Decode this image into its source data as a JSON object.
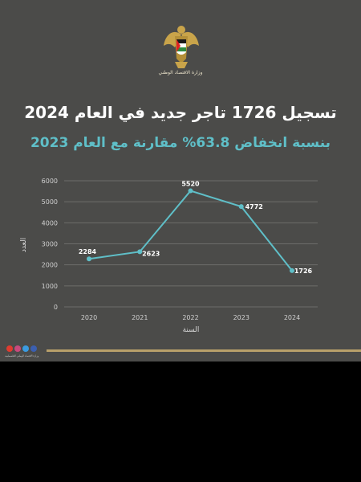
{
  "header": {
    "ministry": "وزارة الاقتصاد الوطني",
    "title": "تسجيل 1726 تاجر جديد في العام 2024",
    "subtitle": "بنسبة انخفاض 63.8% مقارنة مع العام 2023"
  },
  "colors": {
    "background": "#4b4b49",
    "line": "#5fbfc8",
    "accent_gold": "#b8a06a"
  },
  "social": {
    "icons": [
      "youtube-icon",
      "instagram-icon",
      "twitter-icon",
      "facebook-icon"
    ],
    "caption": "وزارة الاقتصاد الوطني الفلسطينية"
  },
  "chart_data": {
    "type": "line",
    "x": [
      2020,
      2021,
      2022,
      2023,
      2024
    ],
    "categories": [
      "2020",
      "2021",
      "2022",
      "2023",
      "2024"
    ],
    "values": [
      2284,
      2623,
      5520,
      4772,
      1726
    ],
    "data_labels": [
      "2284",
      "2623",
      "5520",
      "4772",
      "1726"
    ],
    "xlabel": "السنة",
    "ylabel": "العدد",
    "ylim": [
      0,
      6000
    ],
    "yticks": [
      "0",
      "1000",
      "2000",
      "3000",
      "4000",
      "5000",
      "6000"
    ],
    "grid": true
  }
}
